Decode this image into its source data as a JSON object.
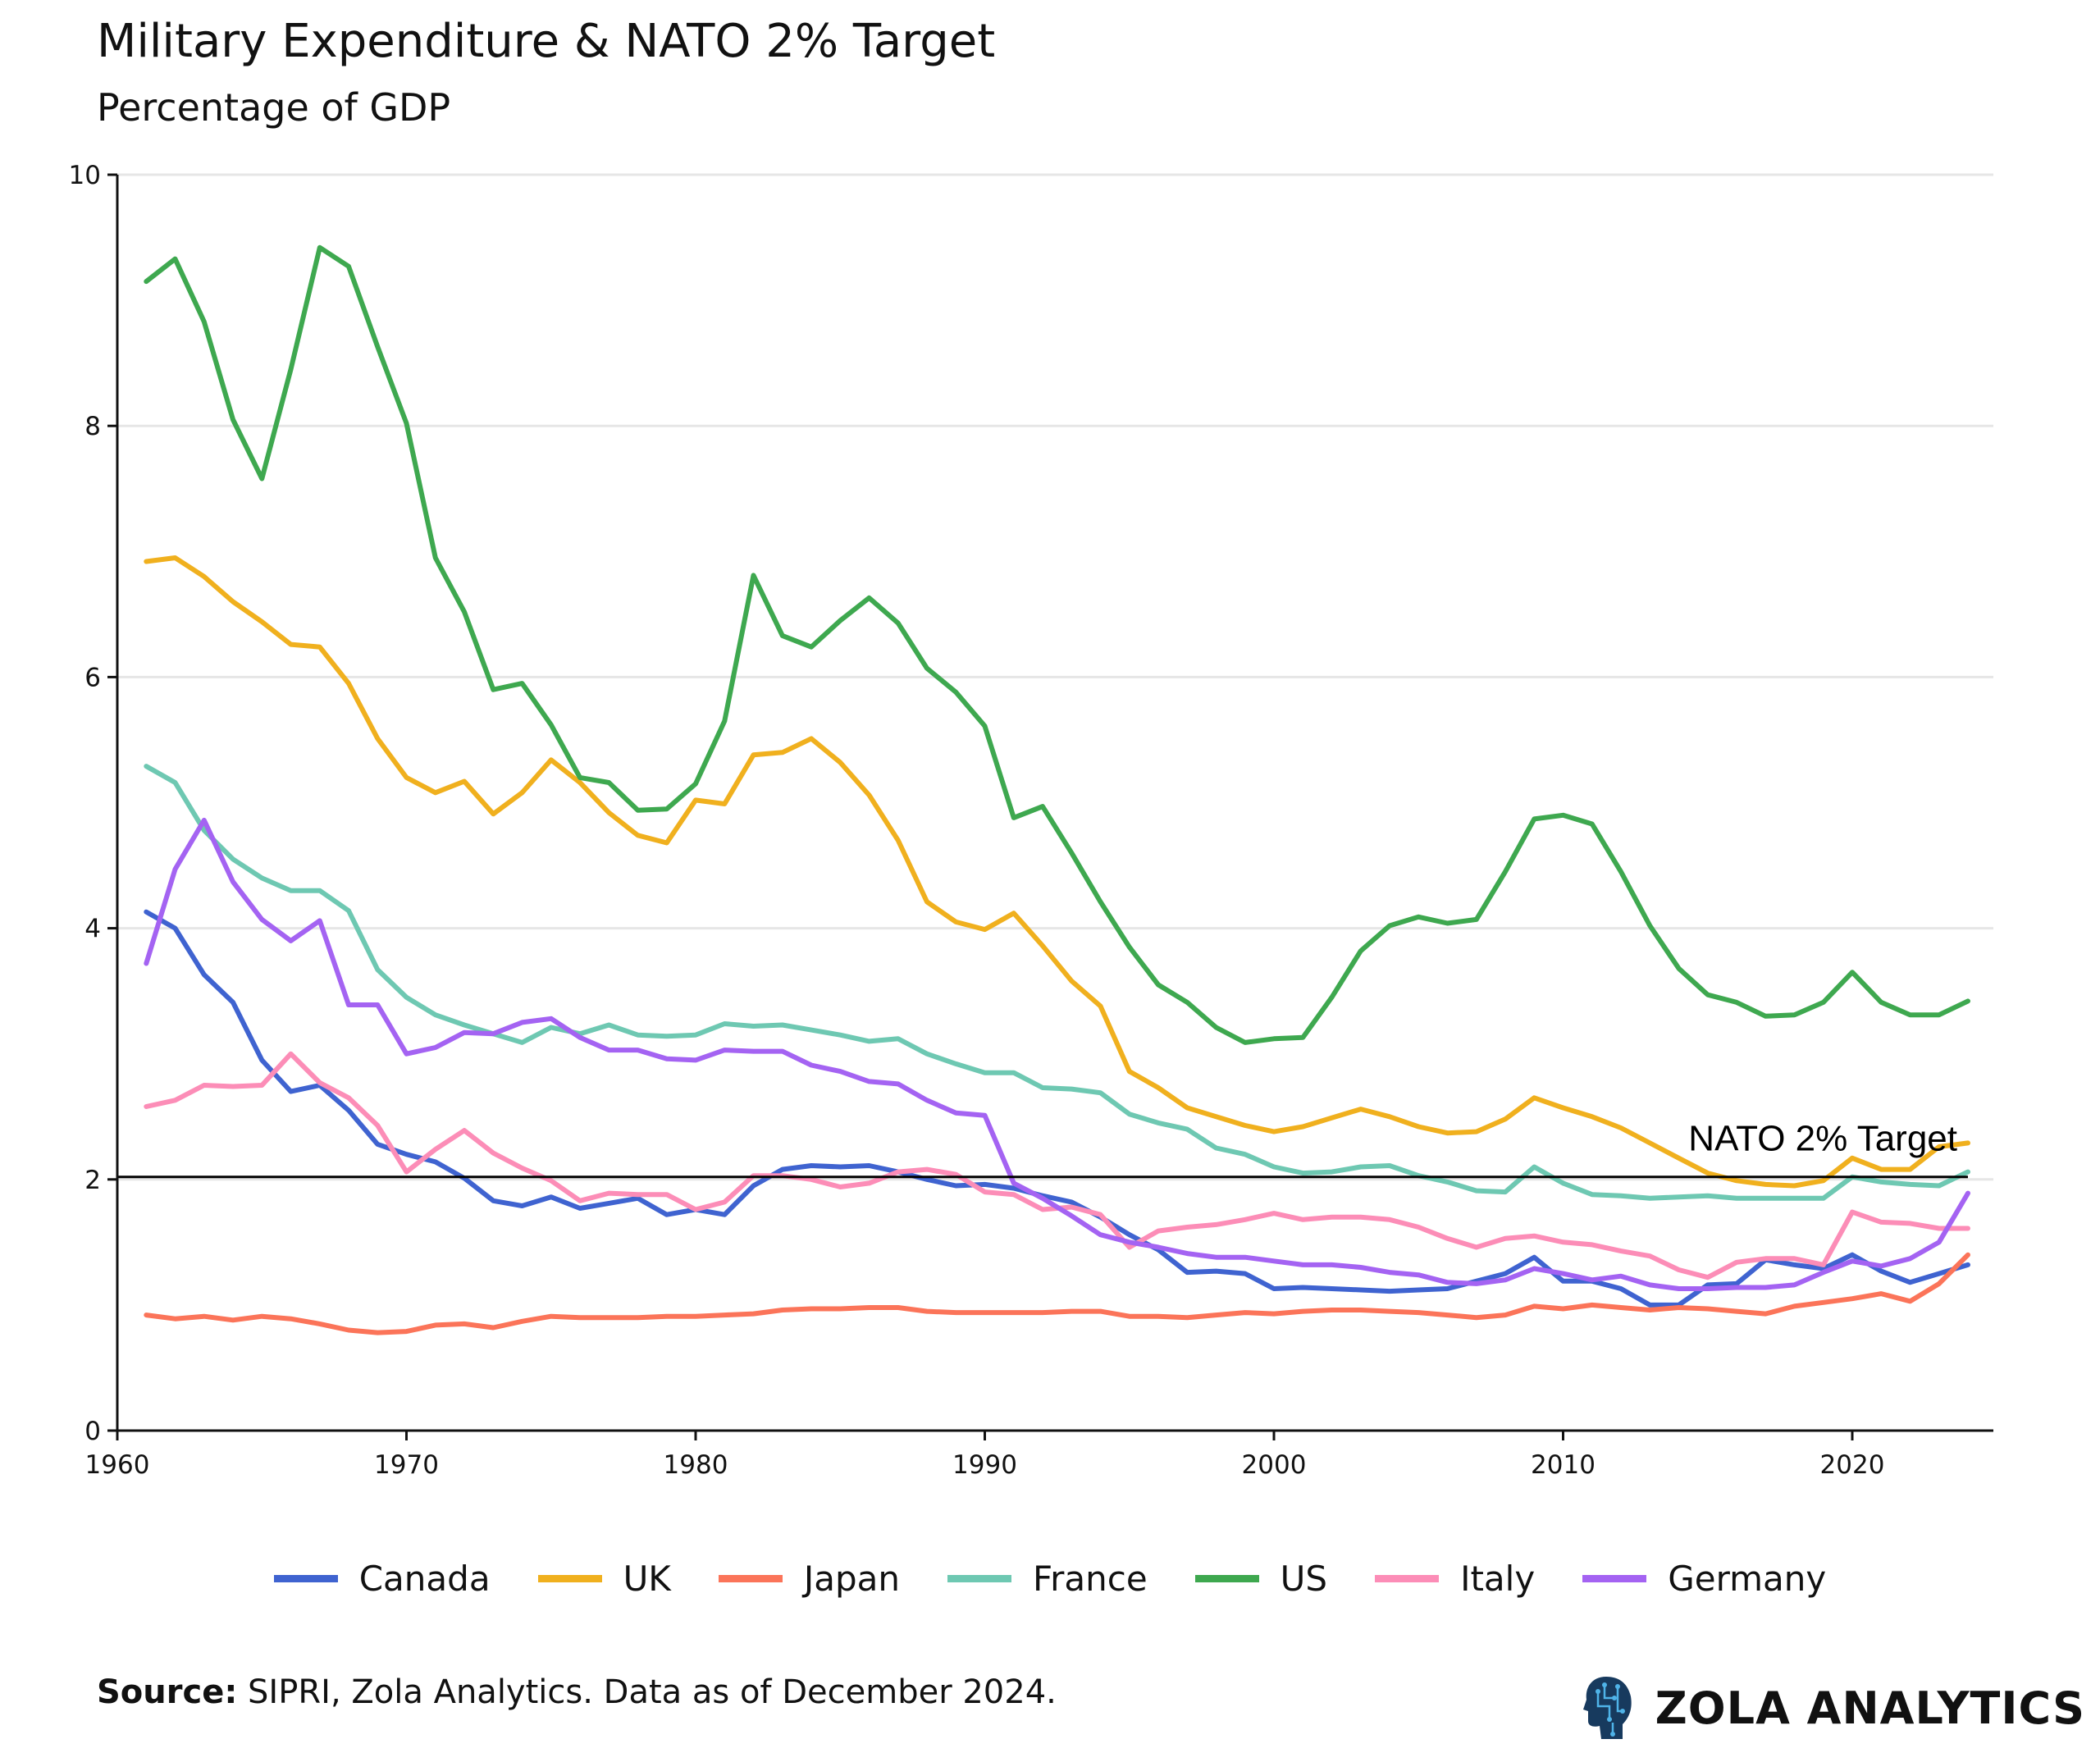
{
  "header": {
    "title": "Military Expenditure & NATO 2% Target",
    "subtitle": "Percentage of GDP"
  },
  "footer": {
    "source_label": "Source:",
    "source_text": " SIPRI, Zola Analytics. Data as of December 2024.",
    "brand": "ZOLA ANALYTICS",
    "brand_icon": "head-circuit-icon"
  },
  "chart_data": {
    "type": "line",
    "title": "Military Expenditure & NATO 2% Target",
    "subtitle": "Percentage of GDP",
    "xlabel": "",
    "ylabel": "",
    "xlim": [
      1960,
      2025
    ],
    "ylim": [
      0,
      10
    ],
    "x_ticks": [
      "1960",
      "1970",
      "1980",
      "1990",
      "2000",
      "2010",
      "2020"
    ],
    "y_ticks": [
      "0",
      "2",
      "4",
      "6",
      "8",
      "10"
    ],
    "grid": "horizontal",
    "legend_position": "bottom",
    "x_start": 1961,
    "x_end": 2024,
    "reference_line": {
      "value": 2.02,
      "label": "NATO 2% Target",
      "color": "#000000"
    },
    "series": [
      {
        "name": "Canada",
        "color": "#3f63d0",
        "values": [
          4.13,
          4.0,
          3.63,
          3.41,
          2.95,
          2.7,
          2.75,
          2.55,
          2.28,
          2.2,
          2.14,
          2.01,
          1.83,
          1.79,
          1.86,
          1.77,
          1.81,
          1.85,
          1.72,
          1.76,
          1.72,
          1.95,
          2.08,
          2.11,
          2.1,
          2.11,
          2.06,
          2.0,
          1.95,
          1.96,
          1.93,
          1.87,
          1.82,
          1.7,
          1.56,
          1.44,
          1.26,
          1.27,
          1.25,
          1.13,
          1.14,
          1.13,
          1.12,
          1.11,
          1.12,
          1.13,
          1.19,
          1.25,
          1.38,
          1.19,
          1.19,
          1.13,
          1.0,
          1.0,
          1.16,
          1.17,
          1.36,
          1.32,
          1.29,
          1.4,
          1.27,
          1.18,
          1.25,
          1.32
        ]
      },
      {
        "name": "UK",
        "color": "#f0b01e",
        "values": [
          6.92,
          6.95,
          6.8,
          6.6,
          6.44,
          6.26,
          6.24,
          5.95,
          5.51,
          5.2,
          5.08,
          5.17,
          4.91,
          5.08,
          5.34,
          5.16,
          4.92,
          4.74,
          4.68,
          5.02,
          4.99,
          5.38,
          5.4,
          5.51,
          5.32,
          5.06,
          4.7,
          4.21,
          4.05,
          3.99,
          4.12,
          3.86,
          3.58,
          3.38,
          2.86,
          2.73,
          2.57,
          2.5,
          2.43,
          2.38,
          2.42,
          2.49,
          2.56,
          2.5,
          2.42,
          2.37,
          2.38,
          2.48,
          2.65,
          2.57,
          2.5,
          2.41,
          2.29,
          2.17,
          2.05,
          1.99,
          1.96,
          1.95,
          1.99,
          2.17,
          2.08,
          2.08,
          2.26,
          2.29
        ]
      },
      {
        "name": "Japan",
        "color": "#fb7459",
        "values": [
          0.92,
          0.89,
          0.91,
          0.88,
          0.91,
          0.89,
          0.85,
          0.8,
          0.78,
          0.79,
          0.84,
          0.85,
          0.82,
          0.87,
          0.91,
          0.9,
          0.9,
          0.9,
          0.91,
          0.91,
          0.92,
          0.93,
          0.96,
          0.97,
          0.97,
          0.98,
          0.98,
          0.95,
          0.94,
          0.94,
          0.94,
          0.94,
          0.95,
          0.95,
          0.91,
          0.91,
          0.9,
          0.92,
          0.94,
          0.93,
          0.95,
          0.96,
          0.96,
          0.95,
          0.94,
          0.92,
          0.9,
          0.92,
          0.99,
          0.97,
          1.0,
          0.98,
          0.96,
          0.98,
          0.97,
          0.95,
          0.93,
          0.99,
          1.02,
          1.05,
          1.09,
          1.03,
          1.17,
          1.4
        ]
      },
      {
        "name": "France",
        "color": "#6ec8b2",
        "values": [
          5.29,
          5.16,
          4.78,
          4.55,
          4.4,
          4.3,
          4.3,
          4.14,
          3.67,
          3.45,
          3.31,
          3.23,
          3.16,
          3.09,
          3.21,
          3.16,
          3.23,
          3.15,
          3.14,
          3.15,
          3.24,
          3.22,
          3.23,
          3.19,
          3.15,
          3.1,
          3.12,
          3.0,
          2.92,
          2.85,
          2.85,
          2.73,
          2.72,
          2.69,
          2.52,
          2.45,
          2.4,
          2.25,
          2.2,
          2.1,
          2.05,
          2.06,
          2.1,
          2.11,
          2.03,
          1.98,
          1.91,
          1.9,
          2.1,
          1.97,
          1.88,
          1.87,
          1.85,
          1.86,
          1.87,
          1.85,
          1.85,
          1.85,
          1.85,
          2.02,
          1.98,
          1.96,
          1.95,
          2.06
        ]
      },
      {
        "name": "US",
        "color": "#3ea84f",
        "values": [
          9.15,
          9.33,
          8.83,
          8.05,
          7.58,
          8.45,
          9.42,
          9.27,
          8.63,
          8.02,
          6.95,
          6.52,
          5.9,
          5.95,
          5.62,
          5.2,
          5.16,
          4.94,
          4.95,
          5.15,
          5.65,
          6.81,
          6.33,
          6.24,
          6.45,
          6.63,
          6.43,
          6.07,
          5.88,
          5.61,
          4.88,
          4.97,
          4.6,
          4.21,
          3.85,
          3.55,
          3.41,
          3.21,
          3.09,
          3.12,
          3.13,
          3.45,
          3.82,
          4.02,
          4.09,
          4.04,
          4.07,
          4.45,
          4.87,
          4.9,
          4.83,
          4.45,
          4.02,
          3.68,
          3.47,
          3.41,
          3.3,
          3.31,
          3.41,
          3.65,
          3.41,
          3.31,
          3.31,
          3.42
        ]
      },
      {
        "name": "Italy",
        "color": "#fc8db7",
        "values": [
          2.58,
          2.63,
          2.75,
          2.74,
          2.75,
          3.0,
          2.77,
          2.65,
          2.43,
          2.06,
          2.24,
          2.39,
          2.21,
          2.09,
          1.99,
          1.83,
          1.89,
          1.88,
          1.88,
          1.76,
          1.82,
          2.03,
          2.03,
          2.0,
          1.94,
          1.97,
          2.06,
          2.08,
          2.04,
          1.9,
          1.88,
          1.76,
          1.78,
          1.72,
          1.46,
          1.59,
          1.62,
          1.64,
          1.68,
          1.73,
          1.68,
          1.7,
          1.7,
          1.68,
          1.62,
          1.53,
          1.46,
          1.53,
          1.55,
          1.5,
          1.48,
          1.43,
          1.39,
          1.28,
          1.22,
          1.34,
          1.37,
          1.37,
          1.32,
          1.74,
          1.66,
          1.65,
          1.61,
          1.61
        ]
      },
      {
        "name": "Germany",
        "color": "#a463f2",
        "values": [
          3.72,
          4.47,
          4.86,
          4.37,
          4.07,
          3.9,
          4.06,
          3.39,
          3.39,
          3.0,
          3.05,
          3.17,
          3.16,
          3.25,
          3.28,
          3.13,
          3.03,
          3.03,
          2.96,
          2.95,
          3.03,
          3.02,
          3.02,
          2.91,
          2.86,
          2.78,
          2.76,
          2.63,
          2.53,
          2.51,
          1.97,
          1.85,
          1.71,
          1.56,
          1.5,
          1.46,
          1.41,
          1.38,
          1.38,
          1.35,
          1.32,
          1.32,
          1.3,
          1.26,
          1.24,
          1.18,
          1.17,
          1.2,
          1.29,
          1.25,
          1.2,
          1.23,
          1.16,
          1.13,
          1.13,
          1.14,
          1.14,
          1.16,
          1.26,
          1.35,
          1.31,
          1.37,
          1.5,
          1.89
        ]
      }
    ]
  }
}
